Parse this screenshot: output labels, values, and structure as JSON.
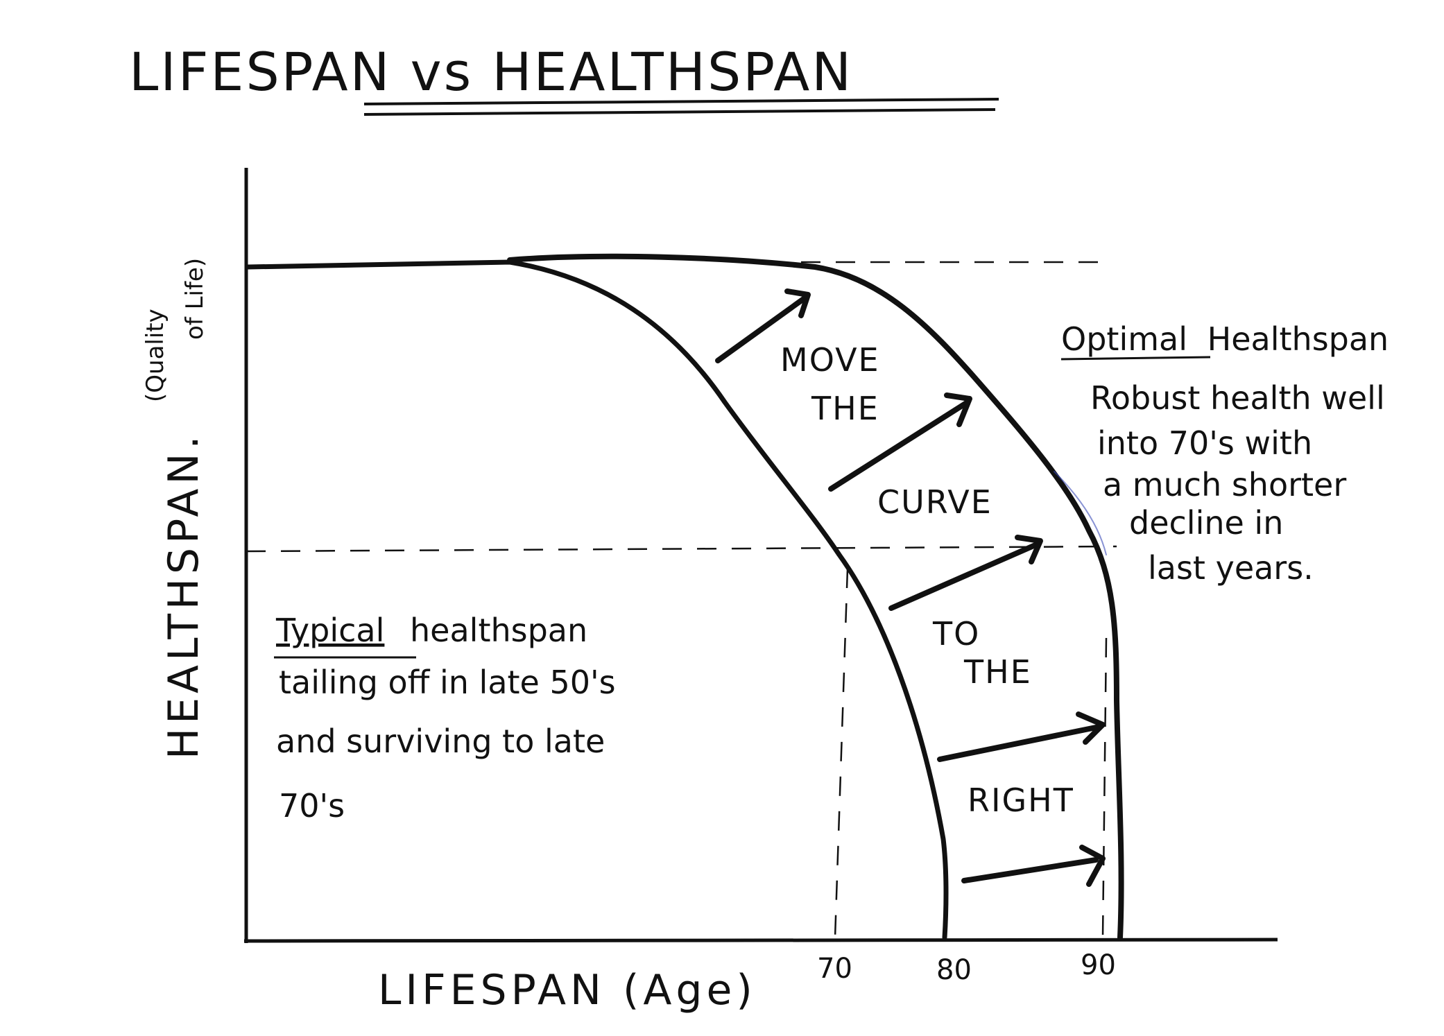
{
  "title": "LIFESPAN vs HEALTHSPAN",
  "y_axis": {
    "label": "HEALTHSPAN.",
    "sublabel_line1": "(Quality",
    "sublabel_line2": "of Life)"
  },
  "x_axis": {
    "label": "LIFESPAN (Age)",
    "ticks": [
      "70",
      "80",
      "90"
    ]
  },
  "typical_note": {
    "heading": "Typical",
    "line1_rest": "healthspan",
    "line2": "tailing off in late 50's",
    "line3": "and surviving to late",
    "line4": "70's"
  },
  "optimal_note": {
    "heading": "Optimal",
    "heading_rest": "Healthspan",
    "line1": "Robust health well",
    "line2": "into 70's with",
    "line3": "a much shorter",
    "line4": "decline in",
    "line5": "last years."
  },
  "move_the_curve": [
    "MOVE",
    "THE",
    "CURVE",
    "TO",
    "THE",
    "RIGHT"
  ],
  "colors": {
    "ink": "#111111",
    "background": "#ffffff",
    "highlight": "#3b4bb8"
  }
}
